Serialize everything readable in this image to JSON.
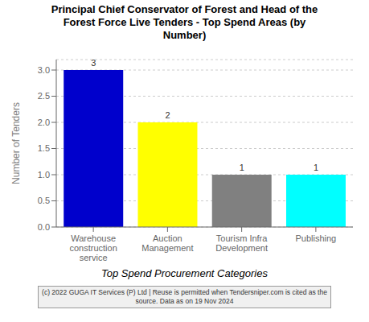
{
  "chart_data": {
    "type": "bar",
    "title": "Principal Chief Conservator of Forest and Head of the\nForest Force Live Tenders - Top Spend Areas (by\nNumber)",
    "categories": [
      "Warehouse\nconstruction\nservice",
      "Auction\nManagement",
      "Tourism Infra\nDevelopment",
      "Publishing"
    ],
    "values": [
      3,
      2,
      1,
      1
    ],
    "colors": [
      "#0000cc",
      "#ffff00",
      "#808080",
      "#00ffff"
    ],
    "ylabel": "Number of Tenders",
    "xlabel": "Top Spend Procurement Categories",
    "ylim": [
      0,
      3.2
    ],
    "yticks": [
      {
        "value": 0.0,
        "label": "0.0"
      },
      0.5,
      {
        "value": 1.0,
        "label": "1.0"
      },
      1.5,
      {
        "value": 2.0,
        "label": "2.0"
      },
      2.5,
      {
        "value": 3.0,
        "label": "3.0"
      }
    ],
    "grid": true,
    "data_labels": true,
    "annotations": [
      "(c) 2022 GUGA IT Services (P) Ltd | Reuse is permitted when Tendersniper.com is cited as the\nsource. Data as on 19 Nov 2024"
    ]
  }
}
